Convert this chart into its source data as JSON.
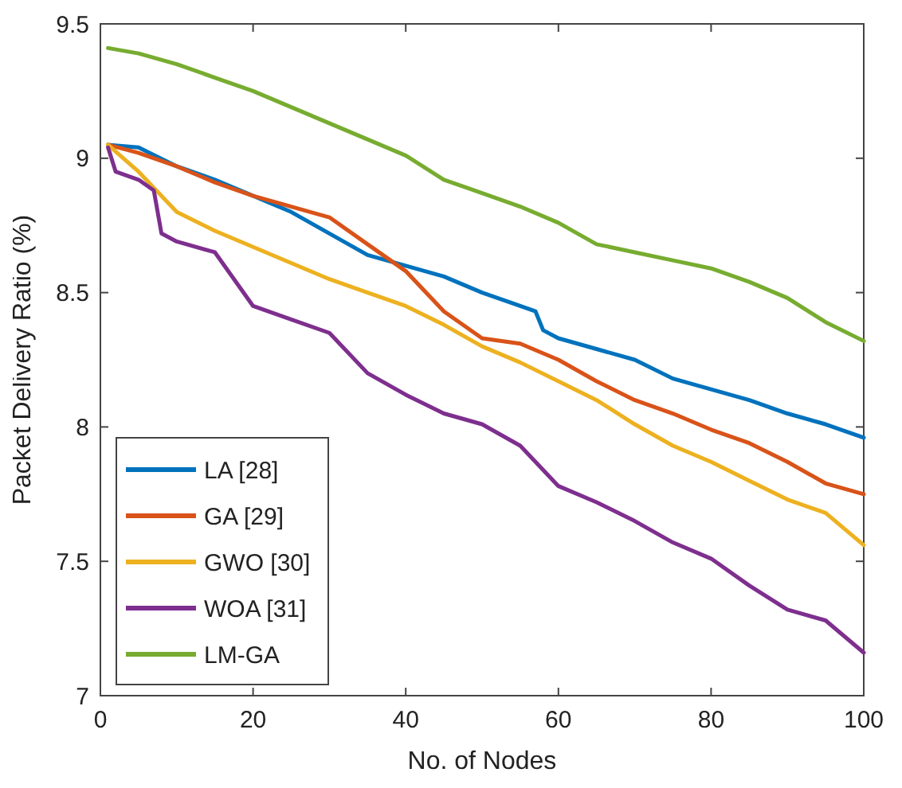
{
  "chart_data": {
    "type": "line",
    "xlabel": "No. of Nodes",
    "ylabel": "Packet Delivery Ratio (%)",
    "xlim": [
      0,
      100
    ],
    "ylim": [
      7,
      9.5
    ],
    "xticks": [
      0,
      20,
      40,
      60,
      80,
      100
    ],
    "yticks": [
      7,
      7.5,
      8,
      8.5,
      9,
      9.5
    ],
    "legend": "bottom left",
    "grid": false,
    "marker": "none",
    "line_style": "solid",
    "series": [
      {
        "name": "LA [28]",
        "color": "#0072bd",
        "x": [
          1,
          5,
          10,
          15,
          20,
          25,
          30,
          35,
          40,
          45,
          50,
          55,
          57,
          58,
          60,
          65,
          70,
          75,
          80,
          85,
          90,
          95,
          100
        ],
        "values": [
          9.05,
          9.04,
          8.97,
          8.92,
          8.86,
          8.8,
          8.72,
          8.64,
          8.6,
          8.56,
          8.5,
          8.45,
          8.43,
          8.36,
          8.33,
          8.29,
          8.25,
          8.18,
          8.14,
          8.1,
          8.05,
          8.01,
          7.96
        ]
      },
      {
        "name": "GA [29]",
        "color": "#d95319",
        "x": [
          1,
          5,
          10,
          15,
          20,
          25,
          30,
          35,
          40,
          45,
          50,
          55,
          60,
          65,
          70,
          75,
          80,
          85,
          90,
          95,
          100
        ],
        "values": [
          9.05,
          9.02,
          8.97,
          8.91,
          8.86,
          8.82,
          8.78,
          8.68,
          8.58,
          8.43,
          8.33,
          8.31,
          8.25,
          8.17,
          8.1,
          8.05,
          7.99,
          7.94,
          7.87,
          7.79,
          7.75
        ]
      },
      {
        "name": "GWO [30]",
        "color": "#edb120",
        "x": [
          1,
          3,
          5,
          10,
          15,
          20,
          25,
          30,
          35,
          40,
          45,
          50,
          55,
          60,
          65,
          70,
          75,
          80,
          85,
          90,
          95,
          100
        ],
        "values": [
          9.05,
          9,
          8.95,
          8.8,
          8.73,
          8.67,
          8.61,
          8.55,
          8.5,
          8.45,
          8.38,
          8.3,
          8.24,
          8.17,
          8.1,
          8.01,
          7.93,
          7.87,
          7.8,
          7.73,
          7.68,
          7.56
        ]
      },
      {
        "name": "WOA [31]",
        "color": "#7e2f8e",
        "x": [
          1,
          2,
          5,
          7,
          8,
          10,
          15,
          20,
          25,
          30,
          35,
          40,
          45,
          50,
          55,
          60,
          65,
          70,
          75,
          80,
          85,
          90,
          95,
          100
        ],
        "values": [
          9.04,
          8.95,
          8.92,
          8.88,
          8.72,
          8.69,
          8.65,
          8.45,
          8.4,
          8.35,
          8.2,
          8.12,
          8.05,
          8.01,
          7.93,
          7.78,
          7.72,
          7.65,
          7.57,
          7.51,
          7.41,
          7.32,
          7.28,
          7.16
        ]
      },
      {
        "name": "LM-GA",
        "color": "#77ac30",
        "x": [
          1,
          5,
          10,
          15,
          20,
          25,
          30,
          35,
          40,
          45,
          48,
          55,
          60,
          65,
          70,
          75,
          80,
          85,
          90,
          95,
          100
        ],
        "values": [
          9.41,
          9.39,
          9.35,
          9.3,
          9.25,
          9.19,
          9.13,
          9.07,
          9.01,
          8.92,
          8.89,
          8.82,
          8.76,
          8.68,
          8.65,
          8.62,
          8.59,
          8.54,
          8.48,
          8.39,
          8.32
        ]
      }
    ]
  }
}
